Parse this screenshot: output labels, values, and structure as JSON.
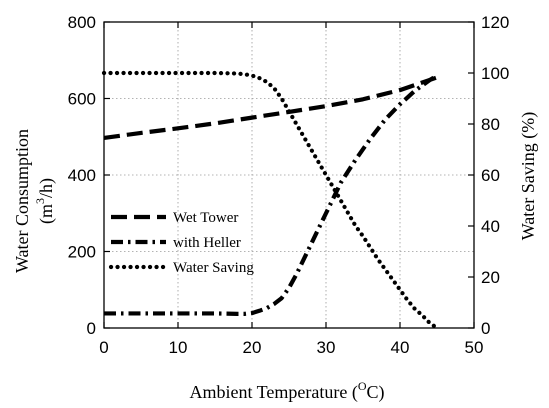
{
  "chart_data": {
    "type": "line",
    "xlabel": {
      "prefix": "Ambient Temperature (",
      "sup": "O",
      "suffix": "C)"
    },
    "ylabel_left": {
      "line1": "Water Consumption",
      "line2_prefix": "(m",
      "line2_sup": "3",
      "line2_suffix": "/h)"
    },
    "ylabel_right": "Water Saving (%)",
    "xlim": [
      0,
      50
    ],
    "ylim_left": [
      0,
      800
    ],
    "ylim_right": [
      0,
      120
    ],
    "x_ticks": [
      0,
      10,
      20,
      30,
      40,
      50
    ],
    "y_left_ticks": [
      0,
      200,
      400,
      600,
      800
    ],
    "y_right_ticks": [
      0,
      20,
      40,
      60,
      80,
      100,
      120
    ],
    "grid": true,
    "legend": {
      "placement": "left-middle"
    },
    "series": [
      {
        "name": "Wet Tower",
        "axis": "left",
        "style": "dashed",
        "x": [
          0,
          5,
          10,
          15,
          20,
          25,
          30,
          35,
          40,
          45
        ],
        "y": [
          497,
          510,
          522,
          535,
          550,
          565,
          580,
          598,
          622,
          655
        ]
      },
      {
        "name": "with Heller",
        "axis": "left",
        "style": "dashdot",
        "x": [
          0,
          5,
          10,
          15,
          18,
          19,
          20,
          21,
          22,
          23,
          24,
          25,
          26,
          28,
          30,
          32,
          34,
          36,
          38,
          40,
          42,
          44,
          45
        ],
        "y": [
          38,
          38,
          38,
          38,
          37,
          37,
          39,
          45,
          52,
          63,
          78,
          105,
          140,
          220,
          300,
          380,
          440,
          495,
          545,
          585,
          620,
          648,
          660
        ]
      },
      {
        "name": "Water Saving",
        "axis": "right",
        "style": "dotted",
        "x": [
          0,
          5,
          10,
          15,
          18,
          19,
          20,
          21,
          22,
          23,
          24,
          25,
          26,
          27,
          28,
          29,
          30,
          31,
          32,
          33,
          34,
          35,
          36,
          37,
          38,
          39,
          40,
          41,
          42,
          43,
          44,
          45
        ],
        "y": [
          100,
          100,
          100,
          100,
          99.8,
          99.5,
          99,
          98,
          96.5,
          94,
          90,
          85,
          80,
          75,
          70,
          65,
          60,
          55,
          50,
          45,
          40,
          36,
          31.5,
          27,
          23,
          19,
          15,
          11,
          7.5,
          5,
          2,
          0
        ]
      }
    ]
  }
}
